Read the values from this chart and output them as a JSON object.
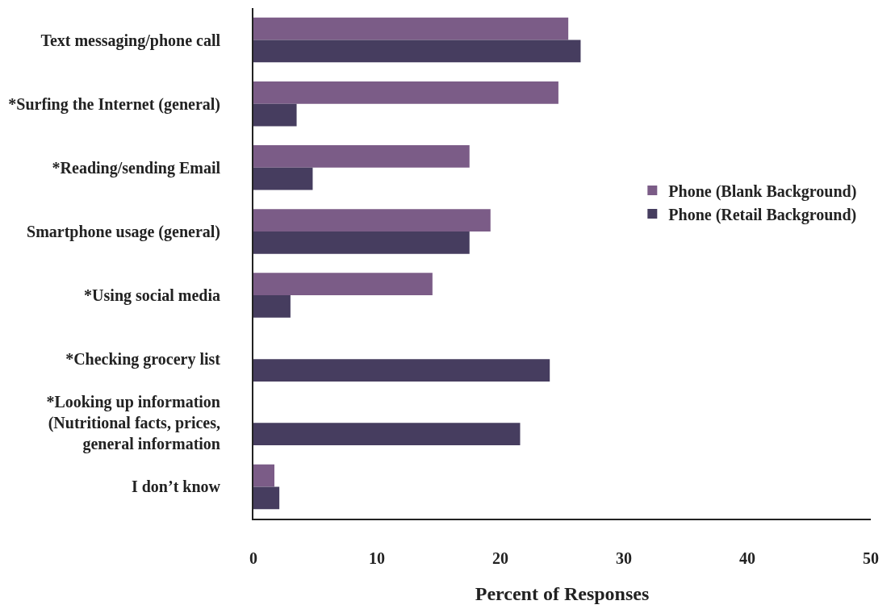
{
  "chart_data": {
    "type": "bar",
    "orientation": "horizontal",
    "xlabel": "Percent of Responses",
    "categories": [
      "Text messaging/phone call",
      "*Surfing the Internet (general)",
      "*Reading/sending Email",
      "Smartphone usage (general)",
      "*Using social media",
      "*Checking grocery list",
      "*Looking up information\n(Nutritional facts, prices,\ngeneral information",
      "I don’t know"
    ],
    "series": [
      {
        "name": "Phone (Blank Background)",
        "color": "#7b5c87",
        "values": [
          25.5,
          24.7,
          17.5,
          19.2,
          14.5,
          null,
          null,
          1.7
        ]
      },
      {
        "name": "Phone (Retail Background)",
        "color": "#463d5f",
        "values": [
          26.5,
          3.5,
          4.8,
          17.5,
          3.0,
          24.0,
          21.6,
          2.1
        ]
      }
    ],
    "xlim": [
      0,
      50
    ],
    "xticks": [
      0,
      10,
      20,
      30,
      40,
      50
    ],
    "legend": "right"
  }
}
